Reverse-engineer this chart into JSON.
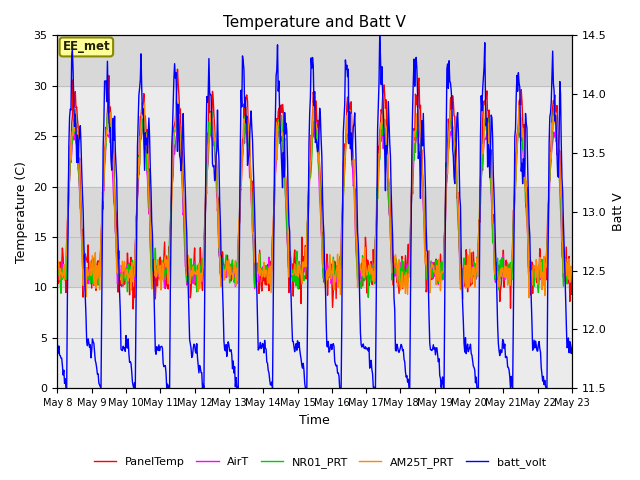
{
  "title": "Temperature and Batt V",
  "xlabel": "Time",
  "ylabel_left": "Temperature (C)",
  "ylabel_right": "Batt V",
  "annotation": "EE_met",
  "ylim_left": [
    0,
    35
  ],
  "ylim_right": [
    11.5,
    14.5
  ],
  "yticks_left": [
    0,
    5,
    10,
    15,
    20,
    25,
    30,
    35
  ],
  "yticks_right": [
    11.5,
    12.0,
    12.5,
    13.0,
    13.5,
    14.0,
    14.5
  ],
  "grid_color": "#bbbbbb",
  "plot_bg": "#ebebeb",
  "band_color": "#d8d8d8",
  "legend_entries": [
    "PanelTemp",
    "AirT",
    "NR01_PRT",
    "AM25T_PRT",
    "batt_volt"
  ],
  "legend_colors": [
    "#ff0000",
    "#ff00ff",
    "#00cc00",
    "#ff8800",
    "#0000ff"
  ],
  "line_width": 1.0,
  "n_days": 16,
  "points_per_day": 48,
  "seed": 42,
  "title_fontsize": 11,
  "label_fontsize": 9,
  "tick_fontsize": 8,
  "legend_fontsize": 8
}
